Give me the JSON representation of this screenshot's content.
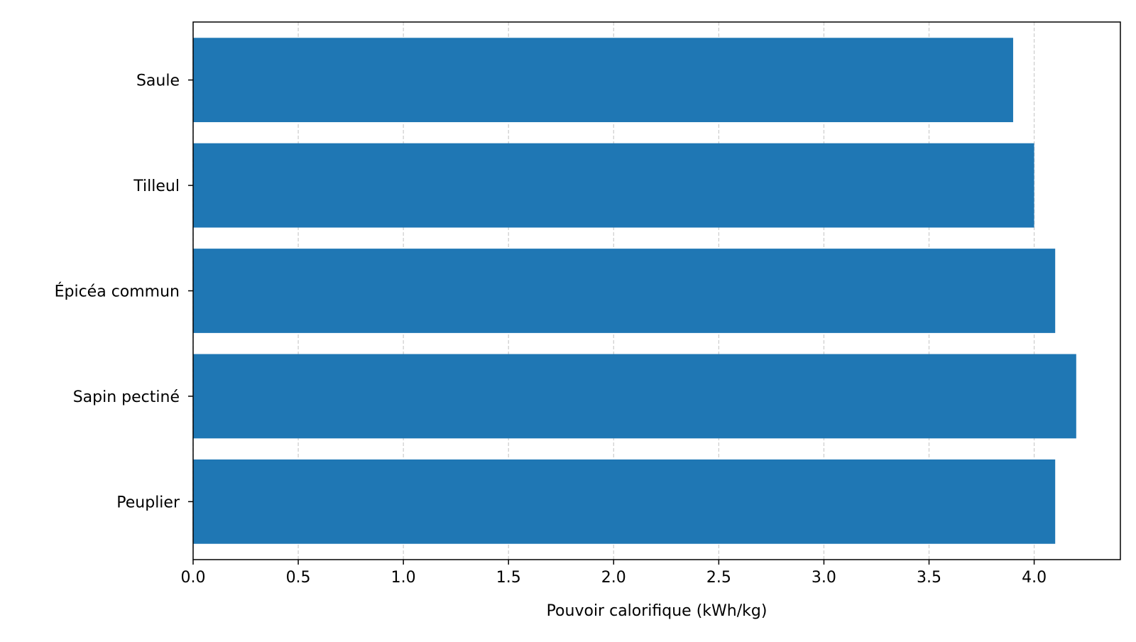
{
  "chart_data": {
    "type": "bar",
    "orientation": "horizontal",
    "categories": [
      "Saule",
      "Tilleul",
      "Épicéa commun",
      "Sapin pectiné",
      "Peuplier"
    ],
    "values": [
      3.9,
      4.0,
      4.1,
      4.2,
      4.1
    ],
    "xlabel": "Pouvoir calorifique (kWh/kg)",
    "ylabel": "",
    "title": "",
    "xlim": [
      0,
      4.41
    ],
    "x_ticks": [
      0.0,
      0.5,
      1.0,
      1.5,
      2.0,
      2.5,
      3.0,
      3.5,
      4.0
    ],
    "x_tick_labels": [
      "0.0",
      "0.5",
      "1.0",
      "1.5",
      "2.0",
      "2.5",
      "3.0",
      "3.5",
      "4.0"
    ],
    "grid": {
      "x": true,
      "y": false,
      "style": "dashed"
    },
    "legend": "none",
    "colors": {
      "bar": "#1f77b4",
      "grid": "#cccccc",
      "axes": "#000000"
    }
  }
}
